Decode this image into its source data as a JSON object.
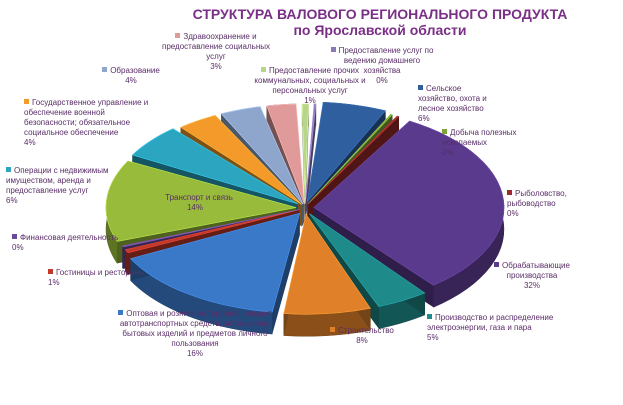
{
  "chart_data": {
    "type": "pie",
    "title_lines": [
      "СТРУКТУРА ВАЛОВОГО РЕГИОНАЛЬНОГО ПРОДУКТА",
      "по Ярославской области"
    ],
    "unit": "%",
    "slices": [
      {
        "label": "Сельское хозяйство, охота и лесное хозяйство",
        "value": 6,
        "value_label": "6%",
        "color": "#2f5f9e"
      },
      {
        "label": "Добыча полезных ископаемых",
        "value": 0,
        "value_label": "0%",
        "color": "#7ea43a"
      },
      {
        "label": "Рыболовство, рыбоводство",
        "value": 0,
        "value_label": "0%",
        "color": "#9a2b2b"
      },
      {
        "label": "Обрабатывающие производства",
        "value": 32,
        "value_label": "32%",
        "color": "#5a3a8c"
      },
      {
        "label": "Производство и распределение электроэнергии, газа и пара",
        "value": 5,
        "value_label": "5%",
        "color": "#1f8a8a"
      },
      {
        "label": "Строительство",
        "value": 8,
        "value_label": "8%",
        "color": "#e0812a"
      },
      {
        "label": "Оптовая и розничная торговля; ремонт автотранспортных средств, мотоциклов, бытовых изделий и предметов личного пользования",
        "value": 16,
        "value_label": "16%",
        "color": "#3a78c8"
      },
      {
        "label": "Гостиницы и рестораны",
        "value": 1,
        "value_label": "1%",
        "color": "#c0392b"
      },
      {
        "label": "Финансовая деятельность",
        "value": 0,
        "value_label": "0%",
        "color": "#6a4a9a"
      },
      {
        "label": "Транспорт и связь",
        "value": 14,
        "value_label": "14%",
        "color": "#98bb3c"
      },
      {
        "label": "Операции с недвижимым имуществом, аренда и предоставление услуг",
        "value": 6,
        "value_label": "6%",
        "color": "#2ba5c0"
      },
      {
        "label": "Государственное управление и обеспечение военной безопасности; обязательное социальное обеспечение",
        "value": 4,
        "value_label": "4%",
        "color": "#f39a2b"
      },
      {
        "label": "Образование",
        "value": 4,
        "value_label": "4%",
        "color": "#8fa6cc"
      },
      {
        "label": "Здравоохранение и предоставление социальных услуг",
        "value": 3,
        "value_label": "3%",
        "color": "#e09a9a"
      },
      {
        "label": "Предоставление прочих коммунальных, социальных и персональных услуг",
        "value": 1,
        "value_label": "1%",
        "color": "#b8d68a"
      },
      {
        "label": "Предоставление услуг по ведению домашнего хозяйства",
        "value": 0,
        "value_label": "0%",
        "color": "#8a78b8"
      }
    ]
  }
}
